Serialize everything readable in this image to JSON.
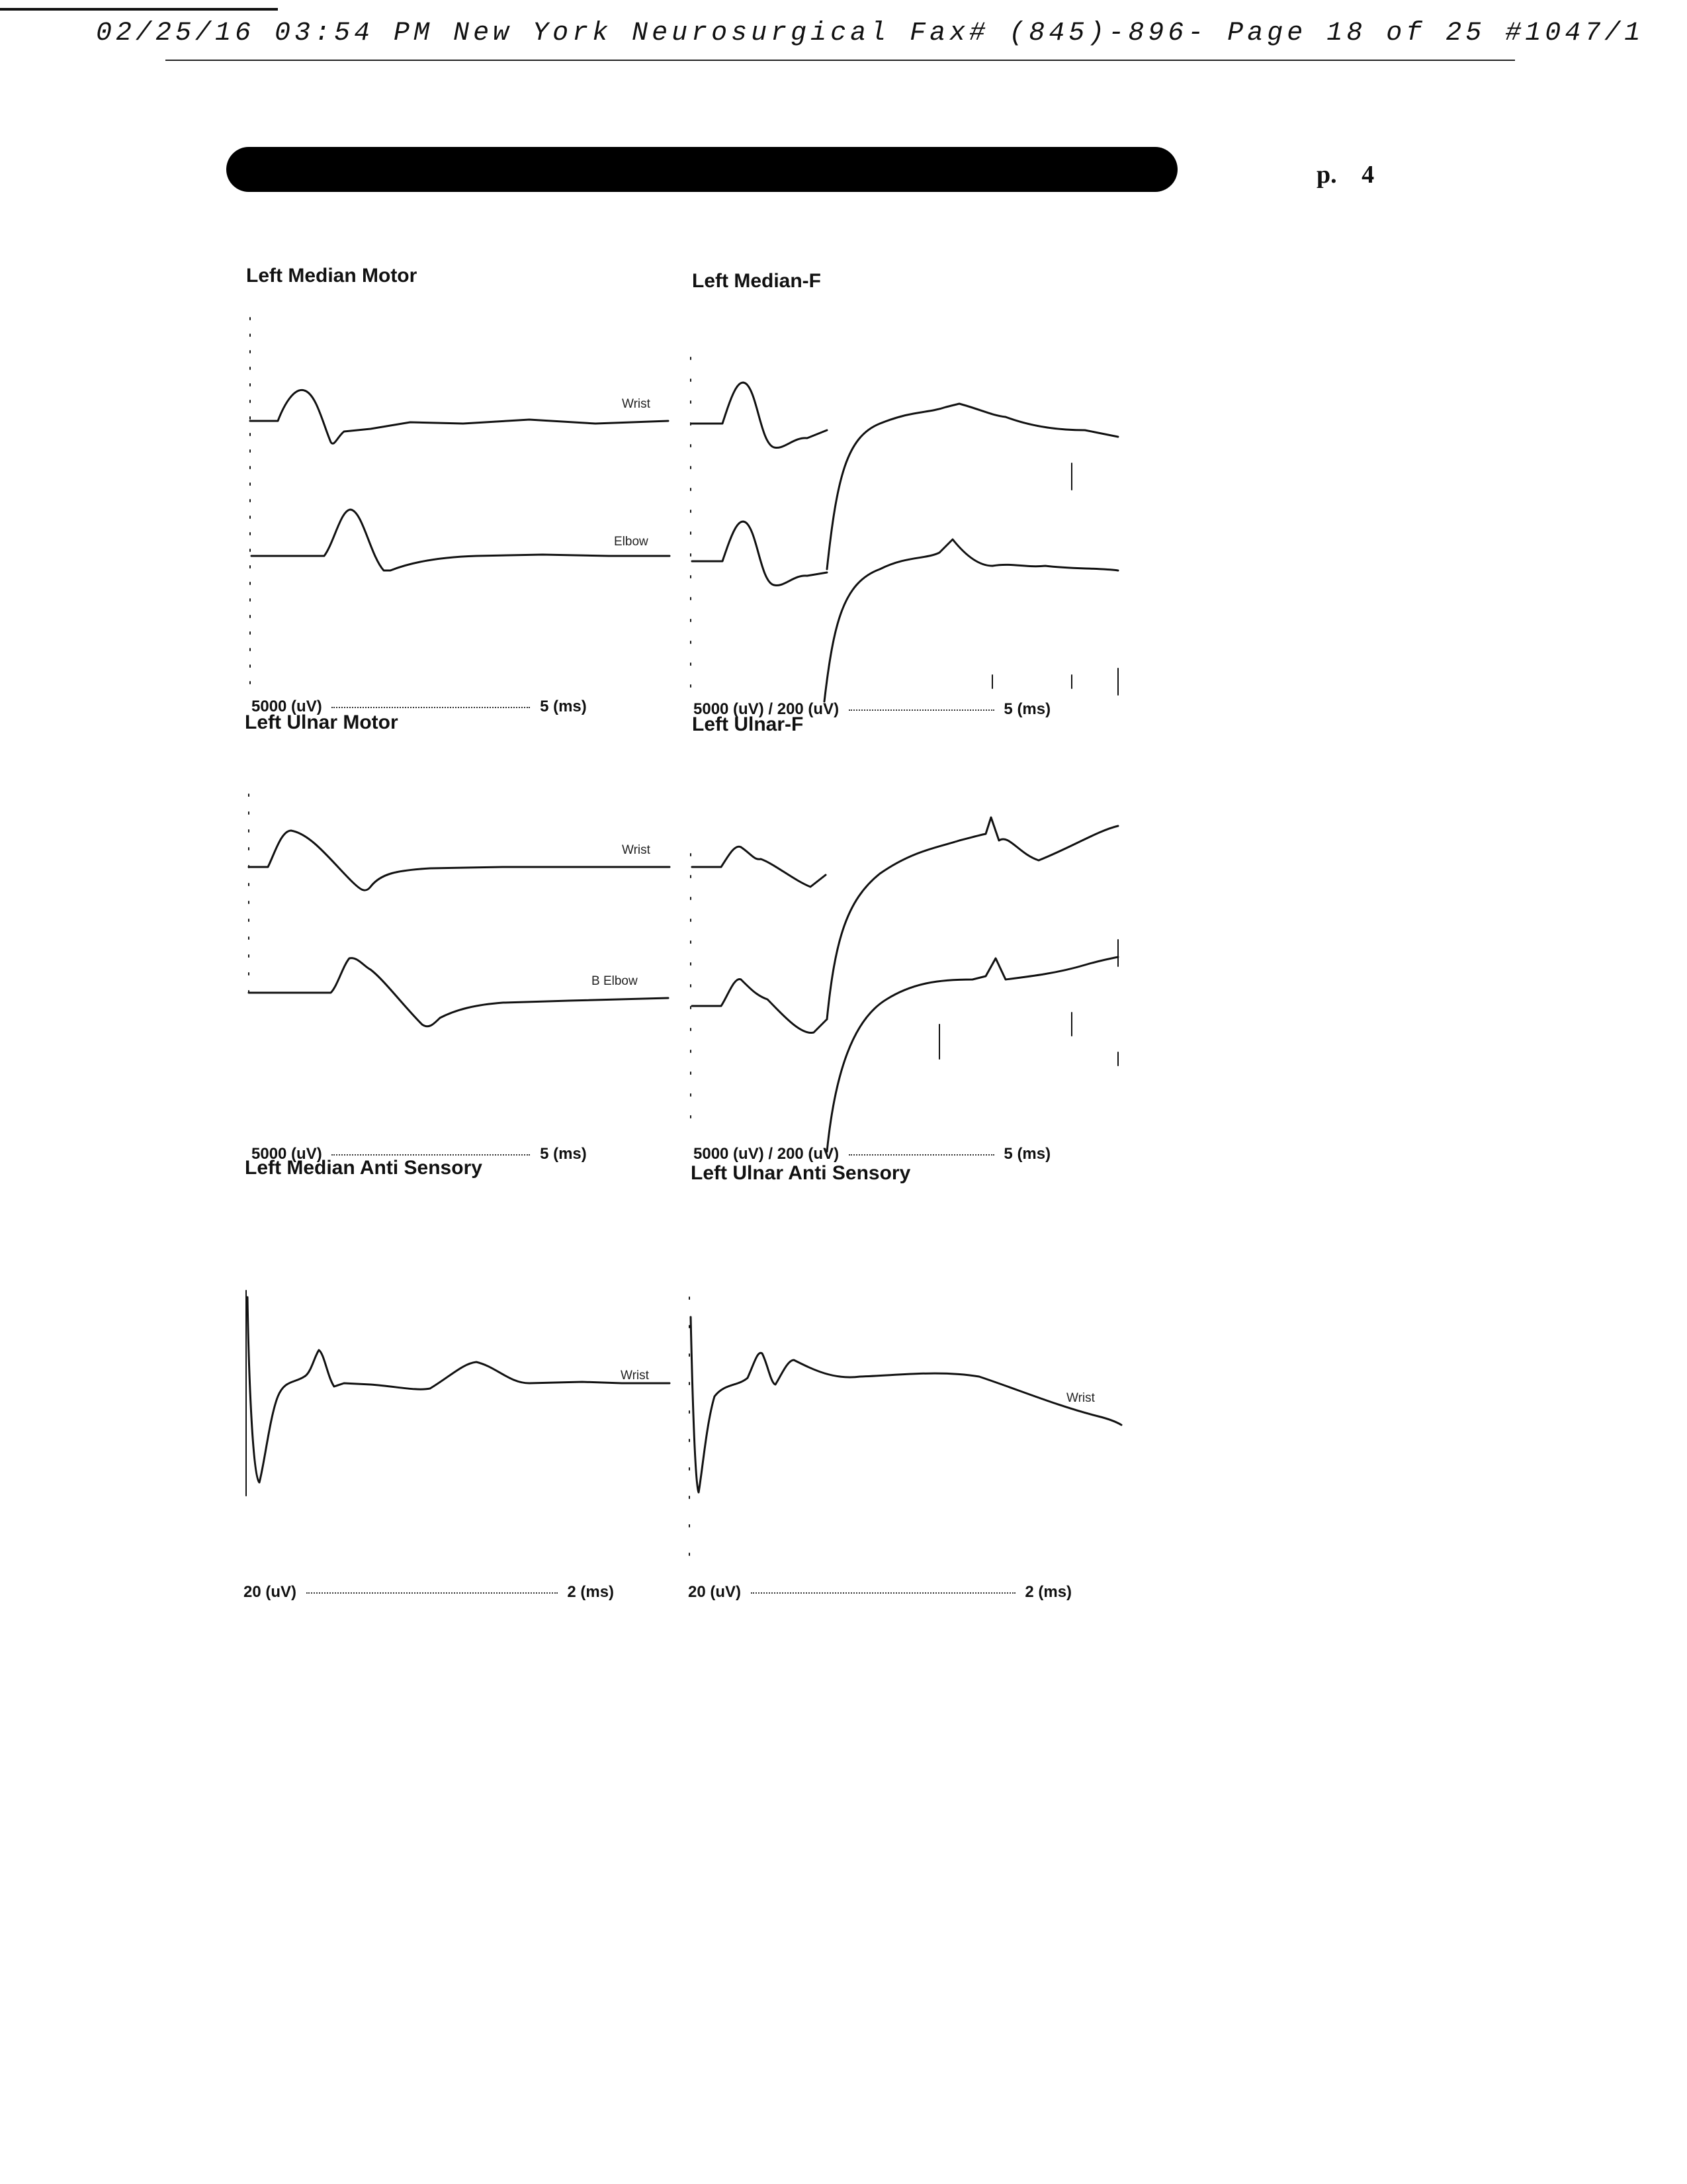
{
  "fax_header": "02/25/16 03:54 PM  New York Neurosurgical   Fax# (845)-896- Page 18 of 25 #1047/1",
  "page_label": "p.",
  "page_number": "4",
  "panels": {
    "left_median_motor": {
      "title": "Left Median Motor",
      "traces": [
        "Wrist",
        "Elbow"
      ],
      "scale_amp": "5000 (uV)",
      "scale_time": "5 (ms)"
    },
    "left_median_f": {
      "title": "Left Median-F",
      "scale_amp": "5000 (uV) / 200 (uV)",
      "scale_time": "5 (ms)"
    },
    "left_ulnar_motor": {
      "title": "Left Ulnar Motor",
      "traces": [
        "Wrist",
        "B Elbow"
      ],
      "scale_amp": "5000 (uV)",
      "scale_time": "5 (ms)"
    },
    "left_ulnar_f": {
      "title": "Left Ulnar-F",
      "scale_amp": "5000 (uV) / 200 (uV)",
      "scale_time": "5 (ms)"
    },
    "left_median_anti_sensory": {
      "title": "Left Median Anti Sensory",
      "traces": [
        "Wrist"
      ],
      "scale_amp": "20 (uV)",
      "scale_time": "2 (ms)"
    },
    "left_ulnar_anti_sensory": {
      "title": "Left Ulnar Anti Sensory",
      "traces": [
        "Wrist"
      ],
      "scale_amp": "20 (uV)",
      "scale_time": "2 (ms)"
    }
  },
  "colors": {
    "ink": "#111111",
    "paper": "#ffffff"
  }
}
